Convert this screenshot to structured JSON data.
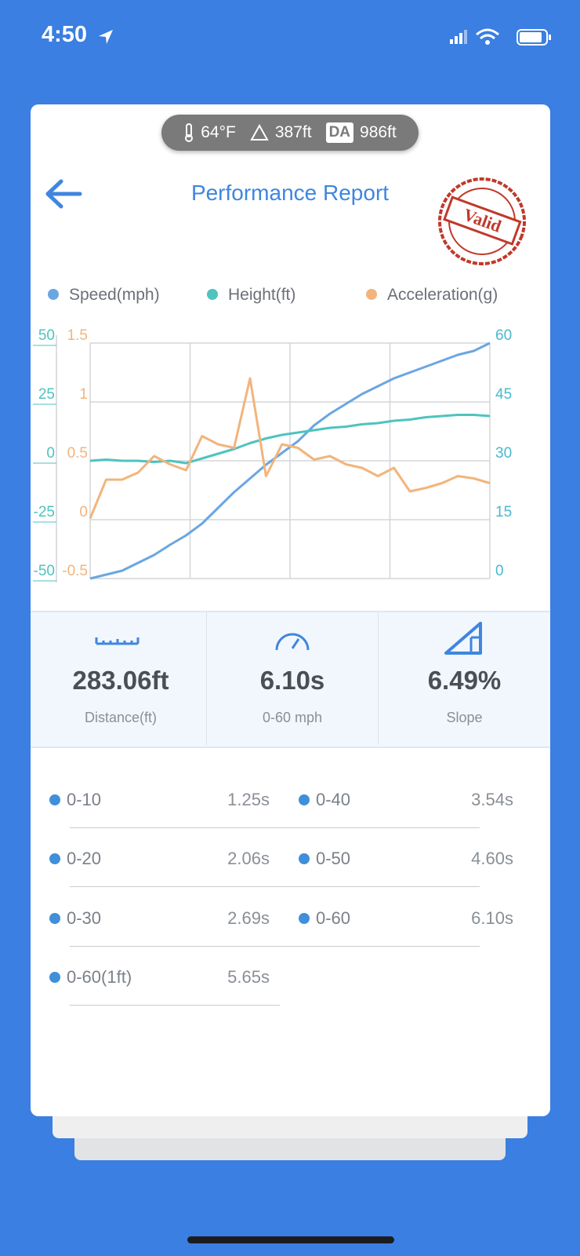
{
  "status_bar": {
    "time": "4:50"
  },
  "conditions": {
    "temperature": "64°F",
    "altitude": "387ft",
    "density_altitude_label": "DA",
    "density_altitude": "986ft"
  },
  "header": {
    "title": "Performance Report",
    "stamp": "Valid"
  },
  "chart_data": {
    "type": "line",
    "series": [
      {
        "name": "Speed(mph)",
        "color": "#6aa6e2",
        "axis": "y2",
        "values": [
          0,
          1,
          2,
          4,
          6,
          8.6,
          11,
          14,
          18,
          22,
          25.5,
          29,
          32,
          35,
          39,
          42,
          44.5,
          47,
          49,
          51,
          52.5,
          54,
          55.5,
          57,
          58,
          60
        ]
      },
      {
        "name": "Height(ft)",
        "color": "#4ec3bf",
        "axis": "y",
        "values": [
          0,
          0.5,
          0,
          0,
          -0.5,
          0,
          -1,
          1,
          3,
          5,
          7.5,
          9.5,
          11,
          12,
          13,
          14,
          14.5,
          15.5,
          16,
          17,
          17.5,
          18.5,
          19,
          19.5,
          19.5,
          19
        ]
      },
      {
        "name": "Acceleration(g)",
        "color": "#f2b47c",
        "axis": "y3",
        "values": [
          0.01,
          0.34,
          0.34,
          0.4,
          0.54,
          0.47,
          0.42,
          0.71,
          0.64,
          0.61,
          1.2,
          0.37,
          0.64,
          0.61,
          0.51,
          0.54,
          0.47,
          0.44,
          0.37,
          0.44,
          0.24,
          0.27,
          0.31,
          0.37,
          0.35,
          0.31
        ]
      }
    ],
    "ylim": [
      -50,
      50
    ],
    "yticks": [
      -50,
      -25,
      0,
      25,
      50
    ],
    "y2lim": [
      0,
      60
    ],
    "y2ticks": [
      0,
      15,
      30,
      45,
      60
    ],
    "y3lim": [
      -0.5,
      1.5
    ],
    "y3ticks": [
      -0.5,
      0,
      0.5,
      1,
      1.5
    ],
    "grid": true
  },
  "stats": [
    {
      "value": "283.06ft",
      "label": "Distance(ft)"
    },
    {
      "value": "6.10s",
      "label": "0-60 mph"
    },
    {
      "value": "6.49%",
      "label": "Slope"
    }
  ],
  "splits": [
    {
      "label": "0-10",
      "time": "1.25s"
    },
    {
      "label": "0-20",
      "time": "2.06s"
    },
    {
      "label": "0-30",
      "time": "2.69s"
    },
    {
      "label": "0-60(1ft)",
      "time": "5.65s"
    },
    {
      "label": "0-40",
      "time": "3.54s"
    },
    {
      "label": "0-50",
      "time": "4.60s"
    },
    {
      "label": "0-60",
      "time": "6.10s"
    }
  ]
}
